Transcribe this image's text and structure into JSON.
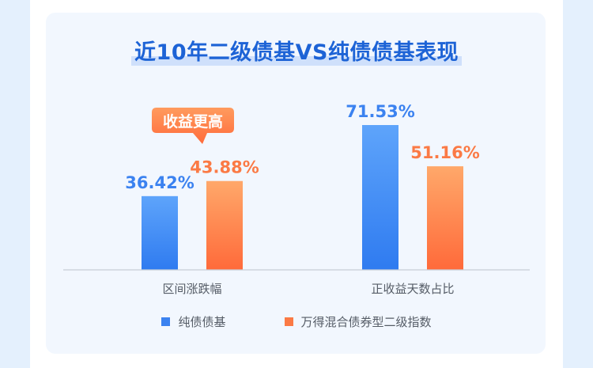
{
  "title": "近10年二级债基VS纯债债基表现",
  "callout": "收益更高",
  "colors": {
    "blue": "#3b82f0",
    "orange": "#fb7a45"
  },
  "chart_data": {
    "type": "bar",
    "categories": [
      "区间涨跌幅",
      "正收益天数占比"
    ],
    "series": [
      {
        "name": "纯债债基",
        "values": [
          36.42,
          71.53
        ],
        "labels": [
          "36.42%",
          "71.53%"
        ],
        "color": "#3b82f0"
      },
      {
        "name": "万得混合债券型二级指数",
        "values": [
          43.88,
          51.16
        ],
        "labels": [
          "43.88%",
          "51.16%"
        ],
        "color": "#fb7a45"
      }
    ],
    "ylim": [
      0,
      80
    ],
    "grid": false,
    "legend": "bottom"
  }
}
